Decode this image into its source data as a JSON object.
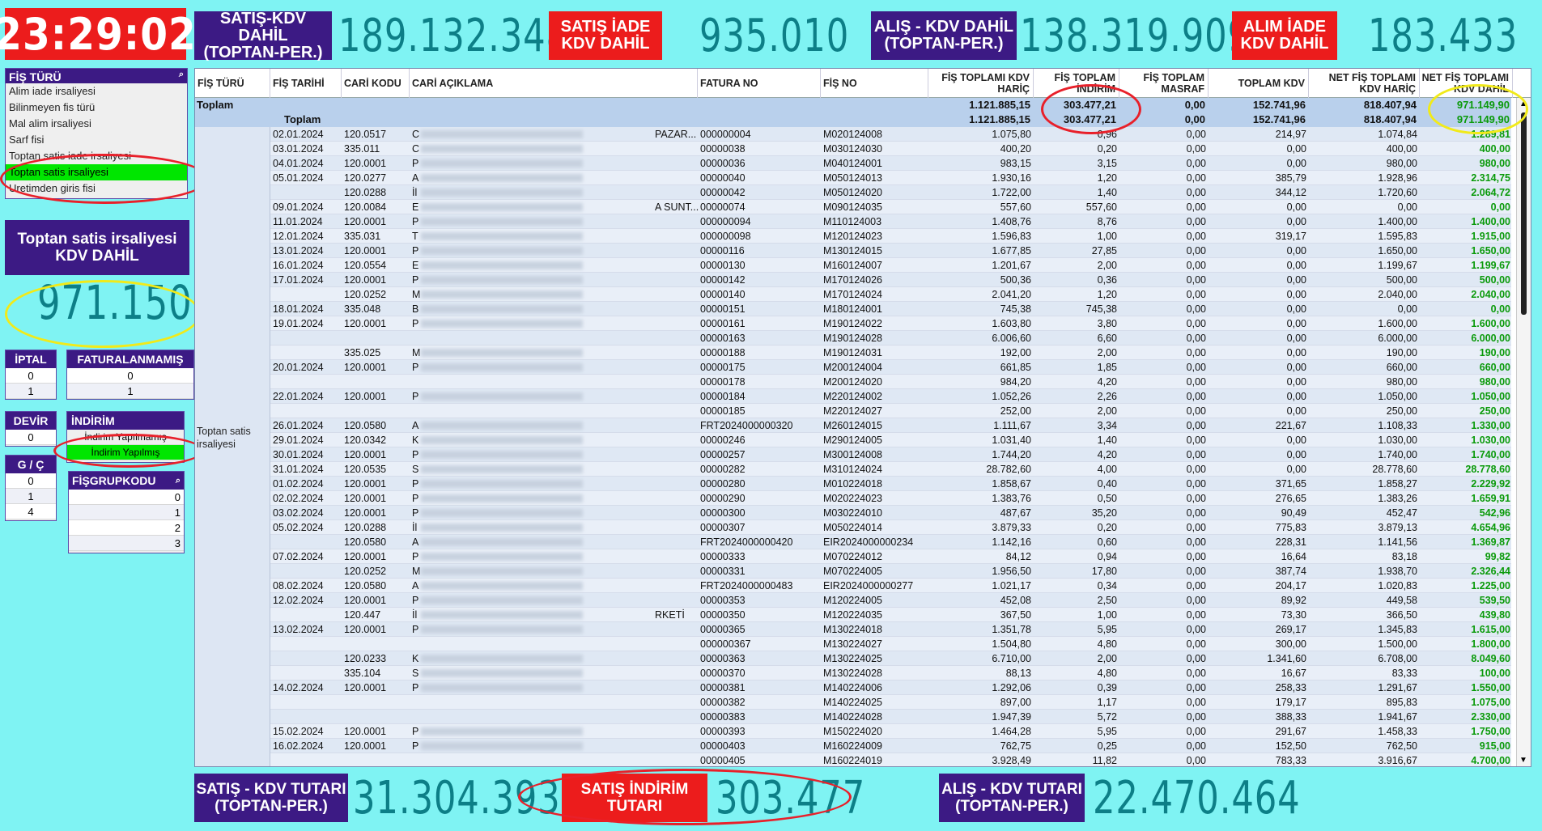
{
  "clock": "23:29:02",
  "top": [
    {
      "label": "SATIŞ-KDV DAHİL\n(TOPTAN-PER.)",
      "value": "189.132.348",
      "color": "purple"
    },
    {
      "label": "SATIŞ İADE\nKDV DAHİL",
      "value": "935.010",
      "color": "red"
    },
    {
      "label": "ALIŞ - KDV DAHİL\n(TOPTAN-PER.)",
      "value": "138.319.909",
      "color": "purple"
    },
    {
      "label": "ALIM İADE\nKDV DAHİL",
      "value": "183.433",
      "color": "red"
    }
  ],
  "fis_turu": {
    "title": "FİŞ TÜRÜ",
    "items": [
      "Alim iade irsaliyesi",
      "Bilinmeyen fis türü",
      "Mal alim irsaliyesi",
      "Sarf fisi",
      "Toptan satis iade irsaliyesi",
      "Toptan satis irsaliyesi",
      "Uretimden giris fisi"
    ],
    "selected": 5
  },
  "kpi": {
    "label": "Toptan satis irsaliyesi\nKDV DAHİL",
    "value": "971.150"
  },
  "iptal": {
    "title": "İPTAL",
    "values": [
      "0",
      "1"
    ]
  },
  "faturalanmamis": {
    "title": "FATURALANMAMIŞ",
    "values": [
      "0",
      "1"
    ]
  },
  "devir": {
    "title": "DEVİR",
    "values": [
      "0"
    ]
  },
  "indirim": {
    "title": "İNDİRİM",
    "values": [
      "İndirim Yapılmamış",
      "İndirim Yapılmış"
    ],
    "selected": 1
  },
  "gc": {
    "title": "G / Ç",
    "values": [
      "0",
      "1",
      "4"
    ]
  },
  "fisgrup": {
    "title": "FİŞGRUPKODU",
    "values": [
      "0",
      "1",
      "2",
      "3"
    ]
  },
  "grid": {
    "headers": [
      "FİŞ TÜRÜ",
      "FİŞ TARİHİ",
      "CARİ KODU",
      "CARİ AÇIKLAMA",
      "FATURA NO",
      "FİŞ NO",
      "FİŞ TOPLAMI KDV HARİÇ",
      "FİŞ TOPLAM İNDİRİM",
      "FİŞ TOPLAM MASRAF",
      "TOPLAM KDV",
      "NET FİŞ TOPLAMI KDV HARİÇ",
      "NET FİŞ TOPLAMI KDV DAHİL"
    ],
    "total_label": "Toplam",
    "subtotal_label": "Toplam",
    "totals": [
      "1.121.885,15",
      "303.477,21",
      "0,00",
      "152.741,96",
      "818.407,94",
      "971.149,90"
    ],
    "group_label": "Toptan satis irsaliyesi",
    "rows": [
      [
        "02.01.2024",
        "120.0517",
        "C",
        "PAZAR...",
        "000000004",
        "M020124008",
        "1.075,80",
        "0,96",
        "0,00",
        "214,97",
        "1.074,84",
        "1.289,81"
      ],
      [
        "03.01.2024",
        "335.011",
        "C",
        "",
        "00000038",
        "M030124030",
        "400,20",
        "0,20",
        "0,00",
        "0,00",
        "400,00",
        "400,00"
      ],
      [
        "04.01.2024",
        "120.0001",
        "P",
        "",
        "00000036",
        "M040124001",
        "983,15",
        "3,15",
        "0,00",
        "0,00",
        "980,00",
        "980,00"
      ],
      [
        "05.01.2024",
        "120.0277",
        "A",
        "",
        "00000040",
        "M050124013",
        "1.930,16",
        "1,20",
        "0,00",
        "385,79",
        "1.928,96",
        "2.314,75"
      ],
      [
        "",
        "120.0288",
        "İl",
        "",
        "00000042",
        "M050124020",
        "1.722,00",
        "1,40",
        "0,00",
        "344,12",
        "1.720,60",
        "2.064,72"
      ],
      [
        "09.01.2024",
        "120.0084",
        "E",
        "A SUNT...",
        "00000074",
        "M090124035",
        "557,60",
        "557,60",
        "0,00",
        "0,00",
        "0,00",
        "0,00"
      ],
      [
        "11.01.2024",
        "120.0001",
        "P",
        "",
        "000000094",
        "M110124003",
        "1.408,76",
        "8,76",
        "0,00",
        "0,00",
        "1.400,00",
        "1.400,00"
      ],
      [
        "12.01.2024",
        "335.031",
        "T",
        "",
        "000000098",
        "M120124023",
        "1.596,83",
        "1,00",
        "0,00",
        "319,17",
        "1.595,83",
        "1.915,00"
      ],
      [
        "13.01.2024",
        "120.0001",
        "P",
        "",
        "00000116",
        "M130124015",
        "1.677,85",
        "27,85",
        "0,00",
        "0,00",
        "1.650,00",
        "1.650,00"
      ],
      [
        "16.01.2024",
        "120.0554",
        "E",
        "",
        "00000130",
        "M160124007",
        "1.201,67",
        "2,00",
        "0,00",
        "0,00",
        "1.199,67",
        "1.199,67"
      ],
      [
        "17.01.2024",
        "120.0001",
        "P",
        "",
        "00000142",
        "M170124026",
        "500,36",
        "0,36",
        "0,00",
        "0,00",
        "500,00",
        "500,00"
      ],
      [
        "",
        "120.0252",
        "M",
        "",
        "00000140",
        "M170124024",
        "2.041,20",
        "1,20",
        "0,00",
        "0,00",
        "2.040,00",
        "2.040,00"
      ],
      [
        "18.01.2024",
        "335.048",
        "B",
        "",
        "00000151",
        "M180124001",
        "745,38",
        "745,38",
        "0,00",
        "0,00",
        "0,00",
        "0,00"
      ],
      [
        "19.01.2024",
        "120.0001",
        "P",
        "",
        "00000161",
        "M190124022",
        "1.603,80",
        "3,80",
        "0,00",
        "0,00",
        "1.600,00",
        "1.600,00"
      ],
      [
        "",
        "",
        "",
        "",
        "00000163",
        "M190124028",
        "6.006,60",
        "6,60",
        "0,00",
        "0,00",
        "6.000,00",
        "6.000,00"
      ],
      [
        "",
        "335.025",
        "M",
        "",
        "00000188",
        "M190124031",
        "192,00",
        "2,00",
        "0,00",
        "0,00",
        "190,00",
        "190,00"
      ],
      [
        "20.01.2024",
        "120.0001",
        "P",
        "",
        "00000175",
        "M200124004",
        "661,85",
        "1,85",
        "0,00",
        "0,00",
        "660,00",
        "660,00"
      ],
      [
        "",
        "",
        "",
        "",
        "00000178",
        "M200124020",
        "984,20",
        "4,20",
        "0,00",
        "0,00",
        "980,00",
        "980,00"
      ],
      [
        "22.01.2024",
        "120.0001",
        "P",
        "",
        "00000184",
        "M220124002",
        "1.052,26",
        "2,26",
        "0,00",
        "0,00",
        "1.050,00",
        "1.050,00"
      ],
      [
        "",
        "",
        "",
        "",
        "00000185",
        "M220124027",
        "252,00",
        "2,00",
        "0,00",
        "0,00",
        "250,00",
        "250,00"
      ],
      [
        "26.01.2024",
        "120.0580",
        "A",
        "",
        "FRT2024000000320",
        "M260124015",
        "1.111,67",
        "3,34",
        "0,00",
        "221,67",
        "1.108,33",
        "1.330,00"
      ],
      [
        "29.01.2024",
        "120.0342",
        "K",
        "",
        "00000246",
        "M290124005",
        "1.031,40",
        "1,40",
        "0,00",
        "0,00",
        "1.030,00",
        "1.030,00"
      ],
      [
        "30.01.2024",
        "120.0001",
        "P",
        "",
        "00000257",
        "M300124008",
        "1.744,20",
        "4,20",
        "0,00",
        "0,00",
        "1.740,00",
        "1.740,00"
      ],
      [
        "31.01.2024",
        "120.0535",
        "S",
        "",
        "00000282",
        "M310124024",
        "28.782,60",
        "4,00",
        "0,00",
        "0,00",
        "28.778,60",
        "28.778,60"
      ],
      [
        "01.02.2024",
        "120.0001",
        "P",
        "",
        "00000280",
        "M010224018",
        "1.858,67",
        "0,40",
        "0,00",
        "371,65",
        "1.858,27",
        "2.229,92"
      ],
      [
        "02.02.2024",
        "120.0001",
        "P",
        "",
        "00000290",
        "M020224023",
        "1.383,76",
        "0,50",
        "0,00",
        "276,65",
        "1.383,26",
        "1.659,91"
      ],
      [
        "03.02.2024",
        "120.0001",
        "P",
        "",
        "00000300",
        "M030224010",
        "487,67",
        "35,20",
        "0,00",
        "90,49",
        "452,47",
        "542,96"
      ],
      [
        "05.02.2024",
        "120.0288",
        "İl",
        "",
        "00000307",
        "M050224014",
        "3.879,33",
        "0,20",
        "0,00",
        "775,83",
        "3.879,13",
        "4.654,96"
      ],
      [
        "",
        "120.0580",
        "A",
        "",
        "FRT2024000000420",
        "EIR2024000000234",
        "1.142,16",
        "0,60",
        "0,00",
        "228,31",
        "1.141,56",
        "1.369,87"
      ],
      [
        "07.02.2024",
        "120.0001",
        "P",
        "",
        "00000333",
        "M070224012",
        "84,12",
        "0,94",
        "0,00",
        "16,64",
        "83,18",
        "99,82"
      ],
      [
        "",
        "120.0252",
        "M",
        "",
        "00000331",
        "M070224005",
        "1.956,50",
        "17,80",
        "0,00",
        "387,74",
        "1.938,70",
        "2.326,44"
      ],
      [
        "08.02.2024",
        "120.0580",
        "A",
        "",
        "FRT2024000000483",
        "EIR2024000000277",
        "1.021,17",
        "0,34",
        "0,00",
        "204,17",
        "1.020,83",
        "1.225,00"
      ],
      [
        "12.02.2024",
        "120.0001",
        "P",
        "",
        "00000353",
        "M120224005",
        "452,08",
        "2,50",
        "0,00",
        "89,92",
        "449,58",
        "539,50"
      ],
      [
        "",
        "120.447",
        "İl",
        "RKETİ",
        "00000350",
        "M120224035",
        "367,50",
        "1,00",
        "0,00",
        "73,30",
        "366,50",
        "439,80"
      ],
      [
        "13.02.2024",
        "120.0001",
        "P",
        "",
        "00000365",
        "M130224018",
        "1.351,78",
        "5,95",
        "0,00",
        "269,17",
        "1.345,83",
        "1.615,00"
      ],
      [
        "",
        "",
        "",
        "",
        "000000367",
        "M130224027",
        "1.504,80",
        "4,80",
        "0,00",
        "300,00",
        "1.500,00",
        "1.800,00"
      ],
      [
        "",
        "120.0233",
        "K",
        "",
        "00000363",
        "M130224025",
        "6.710,00",
        "2,00",
        "0,00",
        "1.341,60",
        "6.708,00",
        "8.049,60"
      ],
      [
        "",
        "335.104",
        "S",
        "",
        "00000370",
        "M130224028",
        "88,13",
        "4,80",
        "0,00",
        "16,67",
        "83,33",
        "100,00"
      ],
      [
        "14.02.2024",
        "120.0001",
        "P",
        "",
        "00000381",
        "M140224006",
        "1.292,06",
        "0,39",
        "0,00",
        "258,33",
        "1.291,67",
        "1.550,00"
      ],
      [
        "",
        "",
        "",
        "",
        "00000382",
        "M140224025",
        "897,00",
        "1,17",
        "0,00",
        "179,17",
        "895,83",
        "1.075,00"
      ],
      [
        "",
        "",
        "",
        "",
        "00000383",
        "M140224028",
        "1.947,39",
        "5,72",
        "0,00",
        "388,33",
        "1.941,67",
        "2.330,00"
      ],
      [
        "15.02.2024",
        "120.0001",
        "P",
        "",
        "00000393",
        "M150224020",
        "1.464,28",
        "5,95",
        "0,00",
        "291,67",
        "1.458,33",
        "1.750,00"
      ],
      [
        "16.02.2024",
        "120.0001",
        "P",
        "",
        "00000403",
        "M160224009",
        "762,75",
        "0,25",
        "0,00",
        "152,50",
        "762,50",
        "915,00"
      ],
      [
        "",
        "",
        "",
        "",
        "00000405",
        "M160224019",
        "3.928,49",
        "11,82",
        "0,00",
        "783,33",
        "3.916,67",
        "4.700,00"
      ]
    ]
  },
  "bottom": [
    {
      "label": "SATIŞ - KDV TUTARI\n(TOPTAN-PER.)",
      "value": "31.304.393",
      "color": "purple"
    },
    {
      "label": "SATIŞ İNDİRİM\nTUTARI",
      "value": "303.477",
      "color": "red"
    },
    {
      "label": "ALIŞ - KDV TUTARI\n(TOPTAN-PER.)",
      "value": "22.470.464",
      "color": "purple"
    }
  ],
  "icons": {
    "search": "magnifier-icon",
    "expand": "collapse-box-icon",
    "scroll_up": "triangle-up",
    "scroll_down": "triangle-down"
  }
}
